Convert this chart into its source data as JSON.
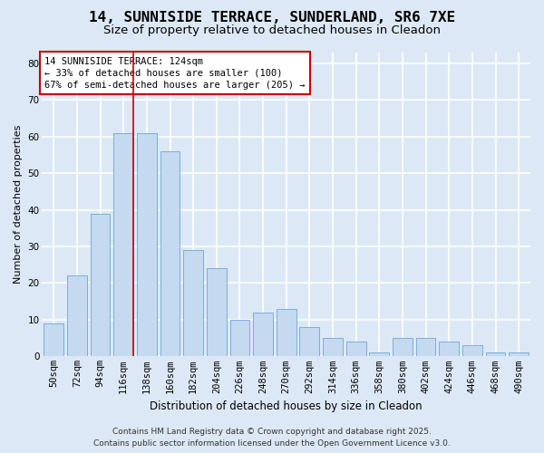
{
  "title": "14, SUNNISIDE TERRACE, SUNDERLAND, SR6 7XE",
  "subtitle": "Size of property relative to detached houses in Cleadon",
  "xlabel": "Distribution of detached houses by size in Cleadon",
  "ylabel": "Number of detached properties",
  "categories": [
    "50sqm",
    "72sqm",
    "94sqm",
    "116sqm",
    "138sqm",
    "160sqm",
    "182sqm",
    "204sqm",
    "226sqm",
    "248sqm",
    "270sqm",
    "292sqm",
    "314sqm",
    "336sqm",
    "358sqm",
    "380sqm",
    "402sqm",
    "424sqm",
    "446sqm",
    "468sqm",
    "490sqm"
  ],
  "values": [
    9,
    22,
    39,
    61,
    61,
    56,
    29,
    24,
    10,
    12,
    13,
    8,
    5,
    4,
    1,
    5,
    5,
    4,
    3,
    1,
    1
  ],
  "bar_color": "#c5d9f1",
  "bar_edge_color": "#7bafd4",
  "background_color": "#dce8f5",
  "plot_bg_color": "#dce8f5",
  "grid_color": "#ffffff",
  "annotation_box_text": "14 SUNNISIDE TERRACE: 124sqm\n← 33% of detached houses are smaller (100)\n67% of semi-detached houses are larger (205) →",
  "annotation_box_color": "#ffffff",
  "annotation_box_edge_color": "#cc0000",
  "vline_x_index": 3,
  "vline_color": "#cc0000",
  "ylim": [
    0,
    83
  ],
  "yticks": [
    0,
    10,
    20,
    30,
    40,
    50,
    60,
    70,
    80
  ],
  "footer_line1": "Contains HM Land Registry data © Crown copyright and database right 2025.",
  "footer_line2": "Contains public sector information licensed under the Open Government Licence v3.0.",
  "title_fontsize": 11.5,
  "subtitle_fontsize": 9.5,
  "xlabel_fontsize": 8.5,
  "ylabel_fontsize": 8,
  "tick_fontsize": 7.5,
  "annotation_fontsize": 7.5,
  "footer_fontsize": 6.5
}
